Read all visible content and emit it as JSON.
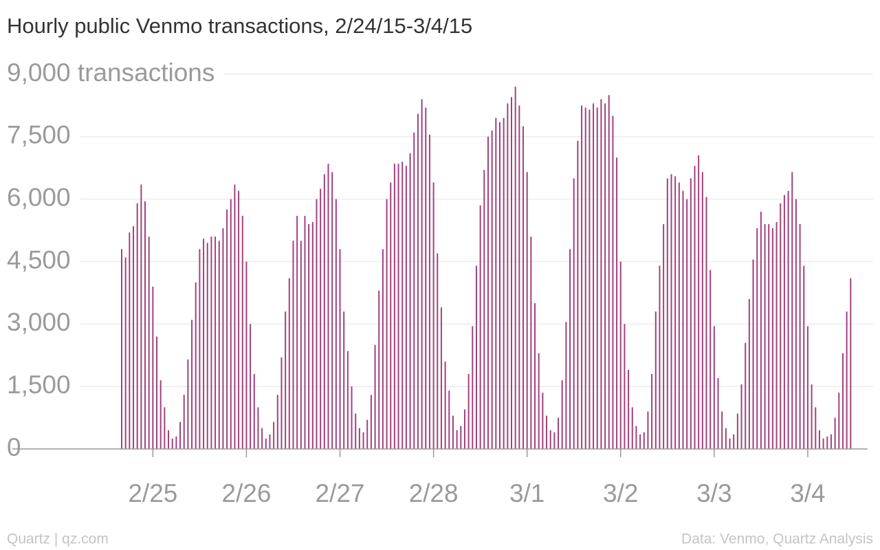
{
  "chart_data": {
    "type": "bar",
    "title": "Hourly public Venmo transactions, 2/24/15-3/4/15",
    "source_left": "Quartz | qz.com",
    "source_right": "Data: Venmo, Quartz Analysis",
    "color": "#a0417c",
    "grid": true,
    "ylim": [
      0,
      9000
    ],
    "yticks": [
      0,
      {
        "value": 1500,
        "label": "1,500"
      },
      {
        "value": 3000,
        "label": "3,000"
      },
      {
        "value": 4500,
        "label": "4,500"
      },
      {
        "value": 6000,
        "label": "6,000"
      },
      {
        "value": 7500,
        "label": "7,500"
      },
      {
        "value": 9000,
        "label": "9,000 transactions"
      }
    ],
    "categories": [
      null,
      null,
      null,
      null,
      null,
      null,
      null,
      null,
      "2/25",
      null,
      null,
      null,
      null,
      null,
      null,
      null,
      null,
      null,
      null,
      null,
      null,
      null,
      null,
      null,
      null,
      null,
      null,
      null,
      null,
      null,
      null,
      null,
      "2/26",
      null,
      null,
      null,
      null,
      null,
      null,
      null,
      null,
      null,
      null,
      null,
      null,
      null,
      null,
      null,
      null,
      null,
      null,
      null,
      null,
      null,
      null,
      null,
      "2/27",
      null,
      null,
      null,
      null,
      null,
      null,
      null,
      null,
      null,
      null,
      null,
      null,
      null,
      null,
      null,
      null,
      null,
      null,
      null,
      null,
      null,
      null,
      null,
      "2/28",
      null,
      null,
      null,
      null,
      null,
      null,
      null,
      null,
      null,
      null,
      null,
      null,
      null,
      null,
      null,
      null,
      null,
      null,
      null,
      null,
      null,
      null,
      null,
      "3/1",
      null,
      null,
      null,
      null,
      null,
      null,
      null,
      null,
      null,
      null,
      null,
      null,
      null,
      null,
      null,
      null,
      null,
      null,
      null,
      null,
      null,
      null,
      null,
      "3/2",
      null,
      null,
      null,
      null,
      null,
      null,
      null,
      null,
      null,
      null,
      null,
      null,
      null,
      null,
      null,
      null,
      null,
      null,
      null,
      null,
      null,
      null,
      null,
      "3/3",
      null,
      null,
      null,
      null,
      null,
      null,
      null,
      null,
      null,
      null,
      null,
      null,
      null,
      null,
      null,
      null,
      null,
      null,
      null,
      null,
      null,
      null,
      null,
      "3/4",
      null,
      null,
      null,
      null,
      null,
      null,
      null,
      null,
      null,
      null,
      null
    ],
    "values": [
      4800,
      4600,
      5200,
      5350,
      5900,
      6350,
      5950,
      5100,
      3900,
      2700,
      1650,
      1000,
      450,
      250,
      300,
      650,
      1300,
      2150,
      3100,
      4000,
      4800,
      5050,
      4950,
      5100,
      5100,
      5000,
      5300,
      5750,
      6000,
      6350,
      6200,
      5600,
      4500,
      3000,
      1800,
      1000,
      500,
      250,
      350,
      650,
      1300,
      2200,
      3300,
      4100,
      5000,
      5600,
      5000,
      5600,
      5400,
      5450,
      6000,
      6250,
      6600,
      6850,
      6650,
      6000,
      4800,
      3300,
      2350,
      1500,
      850,
      500,
      400,
      700,
      1300,
      2500,
      3800,
      4800,
      6000,
      6400,
      6850,
      6850,
      6900,
      6800,
      7100,
      7600,
      8050,
      8400,
      8200,
      7550,
      6400,
      4700,
      3400,
      2100,
      1400,
      800,
      450,
      550,
      950,
      1800,
      2950,
      4400,
      5850,
      6700,
      7500,
      7650,
      7950,
      7850,
      7950,
      8300,
      8450,
      8700,
      8250,
      7750,
      6650,
      5100,
      3500,
      2300,
      1350,
      800,
      450,
      400,
      750,
      1650,
      3050,
      4800,
      6500,
      7400,
      8250,
      8200,
      8150,
      8300,
      8200,
      8400,
      8300,
      8500,
      8000,
      7000,
      4500,
      3000,
      1900,
      1000,
      550,
      350,
      400,
      900,
      1800,
      3300,
      4400,
      5400,
      6500,
      6600,
      6550,
      6400,
      6200,
      6000,
      6500,
      6800,
      7050,
      6650,
      6050,
      4300,
      2950,
      1700,
      900,
      500,
      250,
      350,
      850,
      1550,
      2550,
      3600,
      4550,
      5300,
      5700,
      5400,
      5400,
      5300,
      5450,
      5900,
      6100,
      6200,
      6650,
      6000,
      5400,
      4400,
      2950,
      1550,
      1000,
      450,
      250,
      300,
      350,
      750,
      1350,
      2300,
      3300,
      4100
    ]
  }
}
